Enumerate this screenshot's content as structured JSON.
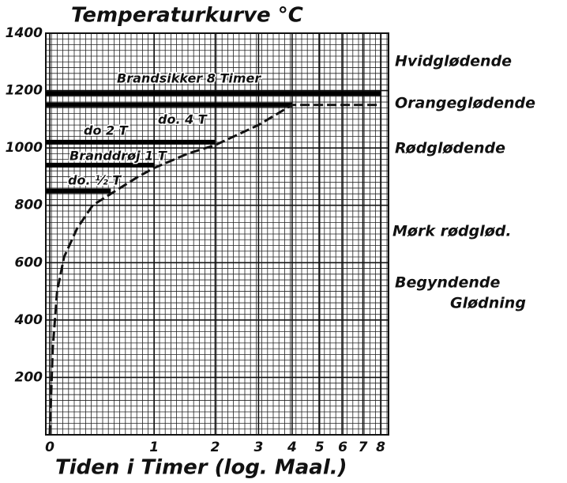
{
  "chart_data": {
    "type": "line",
    "title": "Temperaturkurve °C",
    "xlabel": "Tiden i Timer (log. Maal.)",
    "xscale": "log1p",
    "xlim": [
      0,
      8
    ],
    "xticks": [
      0,
      1,
      2,
      3,
      4,
      5,
      6,
      7,
      8
    ],
    "ylim": [
      0,
      1400
    ],
    "yticks": [
      200,
      400,
      600,
      800,
      1000,
      1200,
      1400
    ],
    "grid": true,
    "x": [
      0,
      0.02,
      0.05,
      0.1,
      0.2,
      0.33,
      0.5,
      0.8,
      1,
      1.5,
      2,
      3,
      4,
      6,
      8
    ],
    "series": [
      {
        "color": "#111111",
        "values": [
          0,
          300,
          500,
          620,
          720,
          800,
          840,
          900,
          930,
          980,
          1010,
          1080,
          1150,
          1150,
          1150
        ]
      }
    ],
    "levels": [
      {
        "label": "Brandsikker 8 Timer",
        "value": 1190,
        "hours": 8
      },
      {
        "label": "do. 4 T",
        "value": 1150,
        "hours": 4
      },
      {
        "label": "do 2 T",
        "value": 1020,
        "hours": 2
      },
      {
        "label": "Branddrøj 1 T",
        "value": 940,
        "hours": 1
      },
      {
        "label": "do. ½ T",
        "value": 850,
        "hours": 0.5
      }
    ],
    "annotations": [
      "Hvidglødende",
      "Orangeglødende",
      "Rødglødende",
      "Mørk rødglød.",
      "Begyndende",
      "Glødning"
    ]
  }
}
